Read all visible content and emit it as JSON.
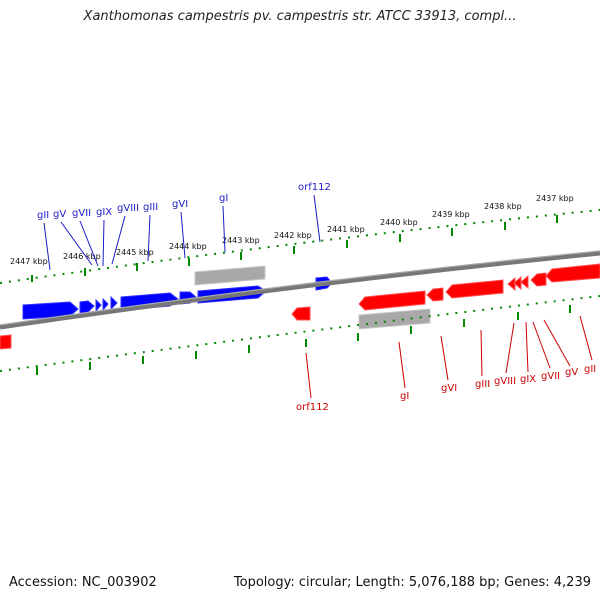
{
  "title": "Xanthomonas campestris pv. campestris str. ATCC 33913, compl...",
  "footer": {
    "accession": "Accession: NC_003902",
    "stats": "Topology: circular; Length: 5,076,188 bp; Genes: 4,239"
  },
  "colors": {
    "forward_strand": "#0000ff",
    "reverse_strand": "#ff0000",
    "unassigned": "#a0a0a0",
    "backbone": "#707070",
    "ticks": "#008800"
  },
  "kbp_labels": [
    "2447 kbp",
    "2446 kbp",
    "2445 kbp",
    "2444 kbp",
    "2443 kbp",
    "2442 kbp",
    "2441 kbp",
    "2440 kbp",
    "2439 kbp",
    "2438 kbp",
    "2437 kbp"
  ],
  "forward_gene_labels": [
    "gII",
    "gV",
    "gVII",
    "gIX",
    "gVIII",
    "gIII",
    "gVI",
    "gI",
    "orf112"
  ],
  "reverse_gene_labels": [
    "orf112",
    "gI",
    "gVI",
    "gIII",
    "gVIII",
    "gIX",
    "gVII",
    "gV",
    "gII"
  ]
}
